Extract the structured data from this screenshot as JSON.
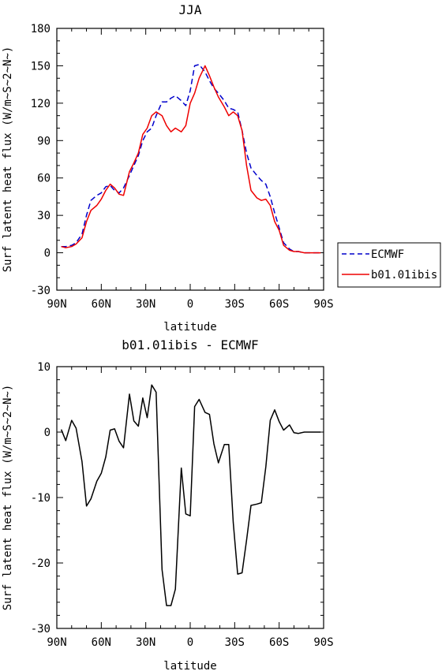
{
  "chart_data": [
    {
      "type": "line",
      "title": "JJA",
      "xlabel": "latitude",
      "ylabel": "Surf latent heat flux (W/m~S~2~N~)",
      "xlim": [
        90,
        -90
      ],
      "ylim": [
        -30,
        180
      ],
      "x_tick_values": [
        90,
        60,
        30,
        0,
        -30,
        -60,
        -90
      ],
      "x_tick_labels": [
        "90N",
        "60N",
        "30N",
        "0",
        "30S",
        "60S",
        "90S"
      ],
      "y_tick_values": [
        -30,
        0,
        30,
        60,
        90,
        120,
        150,
        180
      ],
      "y_tick_labels": [
        "-30",
        "0",
        "30",
        "60",
        "90",
        "120",
        "150",
        "180"
      ],
      "legend_position": "right",
      "series": [
        {
          "name": "ECMWF",
          "color": "#0000cc",
          "dash": "dashed",
          "x": [
            87,
            84,
            80,
            77,
            73,
            70,
            67,
            63,
            60,
            57,
            54,
            51,
            48,
            45,
            41,
            38,
            35,
            32,
            29,
            26,
            23,
            19,
            16,
            13,
            10,
            6,
            3,
            0,
            -3,
            -6,
            -10,
            -13,
            -16,
            -19,
            -23,
            -26,
            -29,
            -32,
            -35,
            -38,
            -41,
            -45,
            -48,
            -51,
            -54,
            -57,
            -60,
            -63,
            -67,
            -70,
            -73,
            -77,
            -80,
            -83,
            -86,
            -88
          ],
          "values": [
            5,
            5,
            6,
            8,
            15,
            30,
            42,
            46,
            48,
            53,
            54,
            50,
            48,
            52,
            62,
            70,
            78,
            90,
            97,
            100,
            110,
            121,
            121,
            124,
            126,
            122,
            118,
            130,
            150,
            151,
            145,
            138,
            132,
            128,
            122,
            116,
            115,
            113,
            98,
            80,
            68,
            62,
            58,
            55,
            45,
            32,
            20,
            8,
            3,
            1,
            1,
            0,
            0,
            0,
            0,
            0
          ]
        },
        {
          "name": "b01.01ibis",
          "color": "#ee0000",
          "dash": "solid",
          "x": [
            87,
            84,
            80,
            77,
            73,
            70,
            67,
            63,
            60,
            57,
            54,
            51,
            48,
            45,
            41,
            38,
            35,
            32,
            29,
            26,
            23,
            19,
            16,
            13,
            10,
            6,
            3,
            0,
            -3,
            -6,
            -10,
            -13,
            -16,
            -19,
            -23,
            -26,
            -29,
            -32,
            -35,
            -38,
            -41,
            -45,
            -48,
            -51,
            -54,
            -57,
            -60,
            -63,
            -67,
            -70,
            -73,
            -77,
            -80,
            -83,
            -86,
            -88
          ],
          "values": [
            5,
            4,
            5,
            7,
            12,
            25,
            34,
            38,
            43,
            50,
            55,
            52,
            47,
            46,
            65,
            72,
            80,
            95,
            100,
            110,
            113,
            110,
            102,
            97,
            100,
            97,
            102,
            120,
            128,
            140,
            150,
            142,
            133,
            125,
            117,
            110,
            113,
            110,
            98,
            70,
            50,
            44,
            42,
            43,
            38,
            25,
            18,
            6,
            2,
            1,
            1,
            0,
            0,
            0,
            0,
            0
          ]
        }
      ]
    },
    {
      "type": "line",
      "title": "b01.01ibis - ECMWF",
      "xlabel": "latitude",
      "ylabel": "Surf latent heat flux (W/m~S~2~N~)",
      "xlim": [
        90,
        -90
      ],
      "ylim": [
        -30,
        10
      ],
      "x_tick_values": [
        90,
        60,
        30,
        0,
        -30,
        -60,
        -90
      ],
      "x_tick_labels": [
        "90N",
        "60N",
        "30N",
        "0",
        "30S",
        "60S",
        "90S"
      ],
      "y_tick_values": [
        -30,
        -20,
        -10,
        0,
        10
      ],
      "y_tick_labels": [
        "-30",
        "-20",
        "-10",
        "0",
        "10"
      ],
      "series": [
        {
          "color": "#000000",
          "dash": "solid",
          "x": [
            87,
            84,
            80,
            77,
            73,
            70,
            67,
            63,
            60,
            57,
            54,
            51,
            48,
            45,
            41,
            38,
            35,
            32,
            29,
            26,
            23,
            19,
            16,
            13,
            10,
            6,
            3,
            0,
            -3,
            -6,
            -10,
            -13,
            -16,
            -19,
            -23,
            -26,
            -29,
            -32,
            -35,
            -38,
            -41,
            -45,
            -48,
            -51,
            -54,
            -57,
            -60,
            -63,
            -67,
            -70,
            -73,
            -77,
            -80,
            -83,
            -86,
            -88
          ],
          "values": [
            0.4,
            -1.3,
            1.8,
            0.6,
            -4.5,
            -11.3,
            -10.2,
            -7.5,
            -6.3,
            -3.8,
            0.3,
            0.5,
            -1.4,
            -2.4,
            5.8,
            1.7,
            0.9,
            5.2,
            2.2,
            7.2,
            6.1,
            -21,
            -26.5,
            -26.5,
            -24,
            -5.5,
            -12.5,
            -12.8,
            3.9,
            5,
            3,
            2.7,
            -1.8,
            -4.7,
            -1.9,
            -1.9,
            -13.8,
            -21.7,
            -21.5,
            -16.5,
            -11.2,
            -11,
            -10.8,
            -5.3,
            1.8,
            3.4,
            1.6,
            0.3,
            1.1,
            -0.1,
            -0.2,
            0,
            0,
            0,
            0,
            0
          ]
        }
      ]
    }
  ]
}
